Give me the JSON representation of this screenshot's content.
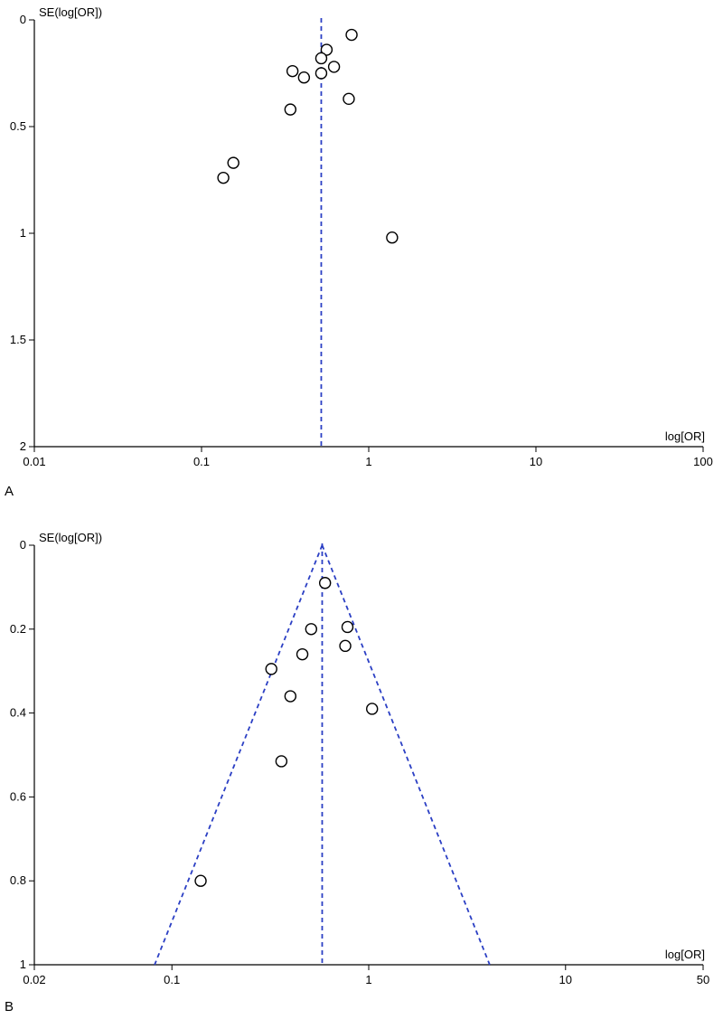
{
  "chart_data": [
    {
      "type": "scatter",
      "panel_label": "A",
      "xlabel": "log[OR]",
      "ylabel": "SE(log[OR])",
      "x_scale": "log",
      "y_inverted": true,
      "xlim": [
        0.01,
        100
      ],
      "ylim": [
        0,
        2
      ],
      "x_ticks": [
        0.01,
        0.1,
        1,
        10,
        100
      ],
      "x_tick_labels": [
        "0.01",
        "0.1",
        "1",
        "10",
        "100"
      ],
      "y_ticks": [
        0,
        0.5,
        1,
        1.5,
        2
      ],
      "y_tick_labels": [
        "0",
        "0.5",
        "1",
        "1.5",
        "2"
      ],
      "pooled_estimate": 0.52,
      "funnel": false,
      "points": [
        {
          "x": 0.79,
          "y": 0.07
        },
        {
          "x": 0.56,
          "y": 0.14
        },
        {
          "x": 0.52,
          "y": 0.18
        },
        {
          "x": 0.62,
          "y": 0.22
        },
        {
          "x": 0.52,
          "y": 0.25
        },
        {
          "x": 0.35,
          "y": 0.24
        },
        {
          "x": 0.41,
          "y": 0.27
        },
        {
          "x": 0.76,
          "y": 0.37
        },
        {
          "x": 0.34,
          "y": 0.42
        },
        {
          "x": 0.155,
          "y": 0.67
        },
        {
          "x": 0.135,
          "y": 0.74
        },
        {
          "x": 1.38,
          "y": 1.02
        }
      ],
      "grid": false,
      "line_color": "#2b3fc4",
      "marker_color": "#000000"
    },
    {
      "type": "scatter",
      "panel_label": "B",
      "xlabel": "log[OR]",
      "ylabel": "SE(log[OR])",
      "x_scale": "log",
      "y_inverted": true,
      "xlim": [
        0.02,
        50
      ],
      "ylim": [
        0,
        1
      ],
      "x_ticks": [
        0.02,
        0.1,
        1,
        10,
        50
      ],
      "x_tick_labels": [
        "0.02",
        "0.1",
        "1",
        "10",
        "50"
      ],
      "y_ticks": [
        0,
        0.2,
        0.4,
        0.6,
        0.8,
        1
      ],
      "y_tick_labels": [
        "0",
        "0.2",
        "0.4",
        "0.6",
        "0.8",
        "1"
      ],
      "pooled_estimate": 0.58,
      "funnel": true,
      "points": [
        {
          "x": 0.6,
          "y": 0.09
        },
        {
          "x": 0.51,
          "y": 0.2
        },
        {
          "x": 0.78,
          "y": 0.195
        },
        {
          "x": 0.76,
          "y": 0.24
        },
        {
          "x": 0.46,
          "y": 0.26
        },
        {
          "x": 0.32,
          "y": 0.295
        },
        {
          "x": 0.4,
          "y": 0.36
        },
        {
          "x": 1.04,
          "y": 0.39
        },
        {
          "x": 0.36,
          "y": 0.515
        },
        {
          "x": 0.14,
          "y": 0.8
        }
      ],
      "grid": false,
      "line_color": "#2b3fc4",
      "marker_color": "#000000"
    }
  ]
}
